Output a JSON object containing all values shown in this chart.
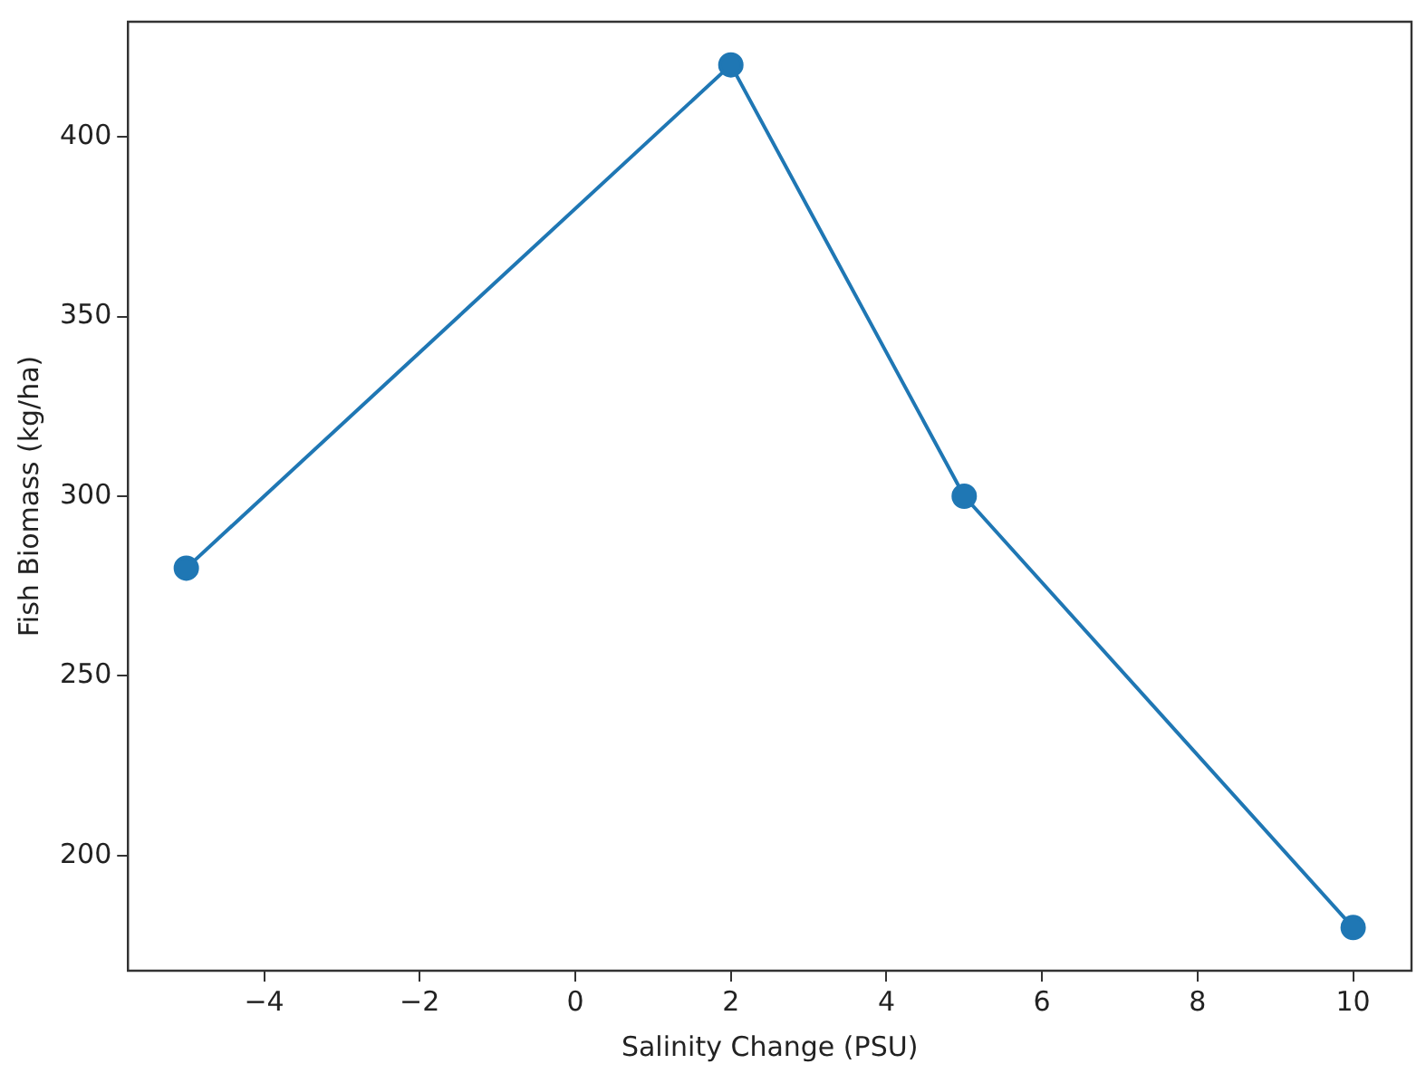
{
  "chart_data": {
    "type": "line",
    "xlabel": "Salinity Change (PSU)",
    "ylabel": "Fish Biomass (kg/ha)",
    "x": [
      -5,
      2,
      5,
      10
    ],
    "series": [
      {
        "color": "#1f77b4",
        "values": [
          280,
          420,
          300,
          180
        ]
      }
    ],
    "xlim": [
      -5.75,
      10.75
    ],
    "xticks": [
      {
        "value": -4,
        "label": "−4"
      },
      {
        "value": -2,
        "label": "−2"
      },
      0,
      2,
      4,
      6,
      8,
      10
    ],
    "ylim": [
      168,
      432
    ],
    "yticks": [
      200,
      250,
      300,
      350,
      400
    ],
    "grid": false,
    "legend": false,
    "marker": "circle",
    "line_style": "solid"
  }
}
